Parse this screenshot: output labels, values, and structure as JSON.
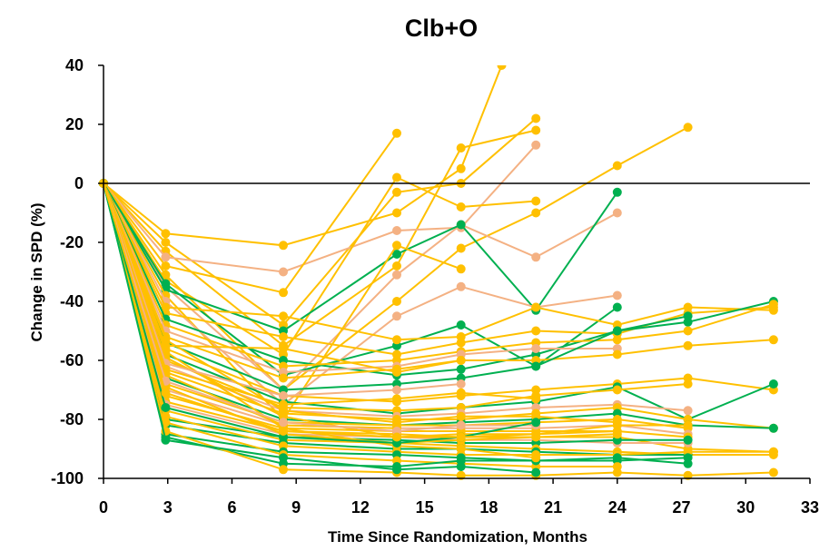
{
  "chart_data": {
    "type": "line",
    "title": "Clb+O",
    "xlabel": "Time Since Randomization, Months",
    "ylabel": "Change in SPD (%)",
    "xlim": [
      0,
      33
    ],
    "ylim": [
      -100,
      40
    ],
    "xticks": [
      "0",
      "3",
      "6",
      "9",
      "12",
      "15",
      "18",
      "21",
      "24",
      "27",
      "30",
      "33"
    ],
    "yticks": [
      "40",
      "20",
      "0",
      "-20",
      "-40",
      "-60",
      "-80",
      "-100"
    ],
    "grid": false,
    "legend": "none",
    "reference_line_y": 0,
    "colors": {
      "yellow": "#FFC000",
      "orange": "#F4B183",
      "green": "#00B050",
      "axis": "#000000"
    },
    "series": [
      {
        "color": "yellow",
        "x": [
          0,
          2.9,
          8.4,
          13.7,
          16.7,
          18.6
        ],
        "y": [
          0,
          -17,
          -21,
          -10,
          5,
          40
        ]
      },
      {
        "color": "yellow",
        "x": [
          0,
          2.9,
          8.4,
          13.7,
          16.7,
          20.2
        ],
        "y": [
          0,
          -20,
          -48,
          -3,
          0,
          22
        ]
      },
      {
        "color": "yellow",
        "x": [
          0,
          2.9,
          8.4,
          13.7,
          16.7,
          20.2
        ],
        "y": [
          0,
          -23,
          -55,
          -28,
          12,
          18
        ]
      },
      {
        "color": "orange",
        "x": [
          0,
          2.9,
          8.4,
          13.7,
          16.7,
          20.2
        ],
        "y": [
          0,
          -25,
          -30,
          -16,
          -15,
          13
        ]
      },
      {
        "color": "yellow",
        "x": [
          0,
          2.9,
          8.4,
          13.7
        ],
        "y": [
          0,
          -28,
          -37,
          17
        ]
      },
      {
        "color": "yellow",
        "x": [
          0,
          2.9,
          8.4,
          13.7,
          16.7,
          20.2,
          24.0,
          27.3
        ],
        "y": [
          0,
          -31,
          -70,
          -40,
          -22,
          -10,
          6,
          19
        ]
      },
      {
        "color": "yellow",
        "x": [
          0,
          2.9,
          8.4,
          13.7,
          16.7,
          20.2
        ],
        "y": [
          0,
          -33,
          -58,
          2,
          -8,
          -6
        ]
      },
      {
        "color": "orange",
        "x": [
          0,
          2.9,
          8.4,
          13.7,
          16.7,
          20.2,
          24.0
        ],
        "y": [
          0,
          -35,
          -70,
          -31,
          -14,
          -25,
          -10
        ]
      },
      {
        "color": "green",
        "x": [
          0,
          2.9,
          8.4,
          13.7,
          16.7,
          20.2,
          24.0
        ],
        "y": [
          0,
          -36,
          -50,
          -24,
          -14,
          -43,
          -3
        ]
      },
      {
        "color": "yellow",
        "x": [
          0,
          2.9,
          8.4,
          13.7,
          16.7
        ],
        "y": [
          0,
          -38,
          -80,
          -21,
          -29
        ]
      },
      {
        "color": "orange",
        "x": [
          0,
          2.9,
          8.4,
          13.7,
          16.7,
          20.2,
          24.0
        ],
        "y": [
          0,
          -40,
          -75,
          -45,
          -35,
          -42,
          -38
        ]
      },
      {
        "color": "green",
        "x": [
          0,
          2.9,
          8.4,
          13.7,
          16.7,
          20.2,
          24.0
        ],
        "y": [
          0,
          -34,
          -65,
          -55,
          -48,
          -62,
          -42
        ]
      },
      {
        "color": "yellow",
        "x": [
          0,
          2.9,
          8.4,
          13.7,
          16.7,
          20.2,
          24.0,
          27.3,
          31.3
        ],
        "y": [
          0,
          -42,
          -45,
          -53,
          -52,
          -42,
          -48,
          -42,
          -43
        ]
      },
      {
        "color": "yellow",
        "x": [
          0,
          2.9,
          8.4,
          13.7,
          16.7,
          20.2,
          24.0,
          27.3,
          31.3
        ],
        "y": [
          0,
          -44,
          -52,
          -58,
          -54,
          -50,
          -51,
          -44,
          -42
        ]
      },
      {
        "color": "green",
        "x": [
          0,
          2.9,
          8.4,
          13.7,
          16.7,
          20.2,
          24.0,
          27.3,
          31.3
        ],
        "y": [
          0,
          -46,
          -60,
          -65,
          -63,
          -58,
          -50,
          -47,
          -40
        ]
      },
      {
        "color": "yellow",
        "x": [
          0,
          2.9,
          8.4,
          13.7,
          16.7,
          20.2,
          24.0,
          27.3,
          31.3
        ],
        "y": [
          0,
          -48,
          -62,
          -60,
          -57,
          -54,
          -53,
          -50,
          -41
        ]
      },
      {
        "color": "orange",
        "x": [
          0,
          2.9,
          8.4,
          13.7,
          16.7,
          20.2,
          24.0
        ],
        "y": [
          0,
          -50,
          -64,
          -62,
          -58,
          -56,
          -56
        ]
      },
      {
        "color": "yellow",
        "x": [
          0,
          2.9,
          8.4,
          13.7,
          16.7,
          20.2,
          24.0,
          27.3,
          31.3
        ],
        "y": [
          0,
          -52,
          -66,
          -63,
          -60,
          -60,
          -58,
          -55,
          -53
        ]
      },
      {
        "color": "green",
        "x": [
          0,
          2.9,
          8.4,
          13.7,
          16.7,
          20.2,
          24.0,
          27.3
        ],
        "y": [
          0,
          -54,
          -70,
          -68,
          -66,
          -62,
          -50,
          -45
        ]
      },
      {
        "color": "yellow",
        "x": [
          0,
          2.9,
          8.4,
          13.7,
          16.7,
          20.2,
          24.0,
          27.3,
          31.3
        ],
        "y": [
          0,
          -56,
          -72,
          -74,
          -72,
          -70,
          -68,
          -66,
          -70
        ]
      },
      {
        "color": "green",
        "x": [
          0,
          2.9,
          8.4,
          13.7,
          16.7,
          20.2,
          24.0,
          27.3,
          31.3
        ],
        "y": [
          0,
          -58,
          -74,
          -78,
          -76,
          -74,
          -69,
          -80,
          -68
        ]
      },
      {
        "color": "yellow",
        "x": [
          0,
          2.9,
          8.4,
          13.7,
          16.7,
          20.2,
          24.0,
          27.3
        ],
        "y": [
          0,
          -60,
          -76,
          -77,
          -76,
          -72,
          -70,
          -68
        ]
      },
      {
        "color": "orange",
        "x": [
          0,
          2.9,
          8.4,
          13.7,
          16.7,
          20.2,
          24.0,
          27.3
        ],
        "y": [
          0,
          -62,
          -77,
          -79,
          -78,
          -76,
          -75,
          -77
        ]
      },
      {
        "color": "yellow",
        "x": [
          0,
          2.9,
          8.4,
          13.7,
          16.7,
          20.2,
          24.0,
          27.3,
          31.3
        ],
        "y": [
          0,
          -64,
          -78,
          -80,
          -80,
          -78,
          -76,
          -80,
          -83
        ]
      },
      {
        "color": "green",
        "x": [
          0,
          2.9,
          8.4,
          13.7,
          16.7,
          20.2,
          24.0,
          27.3,
          31.3
        ],
        "y": [
          0,
          -66,
          -80,
          -82,
          -81,
          -80,
          -78,
          -82,
          -83
        ]
      },
      {
        "color": "yellow",
        "x": [
          0,
          2.9,
          8.4,
          13.7,
          16.7,
          20.2,
          24.0,
          27.3
        ],
        "y": [
          0,
          -68,
          -81,
          -82,
          -82,
          -81,
          -80,
          -83
        ]
      },
      {
        "color": "orange",
        "x": [
          0,
          2.9,
          8.4,
          13.7,
          16.7,
          20.2,
          24.0,
          27.3
        ],
        "y": [
          0,
          -70,
          -82,
          -83,
          -83,
          -83,
          -82,
          -85
        ]
      },
      {
        "color": "yellow",
        "x": [
          0,
          2.9,
          8.4,
          13.7,
          16.7,
          20.2,
          24.0,
          27.3
        ],
        "y": [
          0,
          -72,
          -83,
          -84,
          -84,
          -84,
          -84,
          -86
        ]
      },
      {
        "color": "yellow",
        "x": [
          0,
          2.9,
          8.4,
          13.7,
          16.7,
          20.2,
          24.0,
          27.3,
          31.3
        ],
        "y": [
          0,
          -74,
          -84,
          -85,
          -86,
          -86,
          -86,
          -90,
          -91
        ]
      },
      {
        "color": "orange",
        "x": [
          0,
          2.9,
          8.4,
          13.7,
          16.7,
          20.2,
          24.0,
          27.3
        ],
        "y": [
          0,
          -75,
          -85,
          -86,
          -87,
          -87,
          -88,
          -88
        ]
      },
      {
        "color": "green",
        "x": [
          0,
          2.9,
          8.4,
          13.7,
          16.7,
          20.2,
          24.0,
          27.3
        ],
        "y": [
          0,
          -80,
          -86,
          -87,
          -88,
          -88,
          -87,
          -87
        ]
      },
      {
        "color": "yellow",
        "x": [
          0,
          2.9,
          8.4,
          13.7,
          16.7,
          20.2,
          24.0,
          27.3,
          31.3
        ],
        "y": [
          0,
          -77,
          -87,
          -88,
          -89,
          -90,
          -91,
          -92,
          -92
        ]
      },
      {
        "color": "green",
        "x": [
          0,
          2.9,
          8.4,
          13.7,
          16.7,
          20.2,
          24.0,
          27.3
        ],
        "y": [
          0,
          -82,
          -88,
          -90,
          -90,
          -91,
          -92,
          -92
        ]
      },
      {
        "color": "yellow",
        "x": [
          0,
          2.9,
          8.4,
          13.7,
          16.7,
          20.2,
          24.0,
          27.3,
          31.3
        ],
        "y": [
          0,
          -79,
          -89,
          -91,
          -92,
          -92,
          -92,
          -91,
          -91
        ]
      },
      {
        "color": "green",
        "x": [
          0,
          2.9,
          8.4,
          13.7,
          16.7,
          20.2,
          24.0,
          27.3
        ],
        "y": [
          0,
          -85,
          -91,
          -92,
          -93,
          -94,
          -94,
          -93
        ]
      },
      {
        "color": "yellow",
        "x": [
          0,
          2.9,
          8.4,
          13.7,
          16.7,
          20.2,
          24.0
        ],
        "y": [
          0,
          -81,
          -92,
          -94,
          -95,
          -96,
          -96
        ]
      },
      {
        "color": "green",
        "x": [
          0,
          2.9,
          8.4,
          13.7,
          16.7,
          20.2,
          24.0,
          27.3
        ],
        "y": [
          0,
          -86,
          -95,
          -96,
          -94,
          -94,
          -93,
          -95
        ]
      },
      {
        "color": "yellow",
        "x": [
          0,
          2.9,
          8.4,
          13.7,
          16.7,
          20.2,
          24.0,
          27.3,
          31.3
        ],
        "y": [
          0,
          -84,
          -97,
          -98,
          -99,
          -99,
          -98,
          -99,
          -98
        ]
      },
      {
        "color": "green",
        "x": [
          0,
          2.9,
          8.4,
          13.7,
          16.7,
          20.2
        ],
        "y": [
          0,
          -87,
          -93,
          -97,
          -96,
          -98
        ]
      },
      {
        "color": "yellow",
        "x": [
          0,
          2.9,
          8.4,
          13.7,
          16.7,
          20.2
        ],
        "y": [
          0,
          -57,
          -83,
          -89,
          -90,
          -93
        ]
      },
      {
        "color": "yellow",
        "x": [
          0,
          2.9,
          8.4,
          13.7,
          16.7,
          20.2,
          24.0
        ],
        "y": [
          0,
          -59,
          -79,
          -86,
          -85,
          -85,
          -84
        ]
      },
      {
        "color": "orange",
        "x": [
          0,
          2.9,
          8.4,
          13.7,
          16.7
        ],
        "y": [
          0,
          -61,
          -72,
          -70,
          -68
        ]
      },
      {
        "color": "yellow",
        "x": [
          0,
          2.9,
          8.4,
          13.7,
          16.7,
          20.2
        ],
        "y": [
          0,
          -63,
          -75,
          -73,
          -71,
          -73
        ]
      },
      {
        "color": "yellow",
        "x": [
          0,
          2.9,
          8.4,
          13.7
        ],
        "y": [
          0,
          -65,
          -82,
          -83
        ]
      },
      {
        "color": "yellow",
        "x": [
          0,
          2.9,
          8.4,
          13.7,
          16.7,
          20.2,
          24.0
        ],
        "y": [
          0,
          -53,
          -77,
          -81,
          -79,
          -79,
          -81
        ]
      },
      {
        "color": "yellow",
        "x": [
          0,
          2.9,
          8.4,
          13.7,
          16.7
        ],
        "y": [
          0,
          -55,
          -56,
          -64,
          -60
        ]
      },
      {
        "color": "yellow",
        "x": [
          0,
          2.9,
          8.4,
          13.7,
          16.7,
          20.2,
          24.0
        ],
        "y": [
          0,
          -69,
          -85,
          -88,
          -87,
          -86,
          -85
        ]
      },
      {
        "color": "orange",
        "x": [
          0,
          2.9,
          8.4,
          13.7,
          16.7,
          20.2
        ],
        "y": [
          0,
          -67,
          -81,
          -84,
          -82,
          -82
        ]
      },
      {
        "color": "green",
        "x": [
          0,
          2.9,
          8.4,
          13.7,
          16.7,
          20.2
        ],
        "y": [
          0,
          -76,
          -86,
          -88,
          -86,
          -81
        ]
      },
      {
        "color": "yellow",
        "x": [
          0,
          2.9,
          8.4,
          13.7,
          16.7,
          20.2,
          24.0,
          27.3
        ],
        "y": [
          0,
          -71,
          -84,
          -86,
          -86,
          -85,
          -82,
          -82
        ]
      }
    ]
  }
}
